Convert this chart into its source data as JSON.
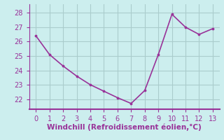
{
  "x": [
    0,
    1,
    2,
    3,
    4,
    5,
    6,
    7,
    8,
    9,
    10,
    11,
    12,
    13
  ],
  "y": [
    26.4,
    25.1,
    24.3,
    23.6,
    23.0,
    22.55,
    22.1,
    21.7,
    22.6,
    25.1,
    27.9,
    27.0,
    26.5,
    26.9
  ],
  "line_color": "#993399",
  "marker_color": "#993399",
  "bg_color": "#cceeee",
  "grid_color": "#aacccc",
  "axis_color": "#993399",
  "spine_color": "#993399",
  "xlabel": "Windchill (Refroidissement éolien,°C)",
  "xlabel_color": "#993399",
  "ylabel_ticks": [
    22,
    23,
    24,
    25,
    26,
    27,
    28
  ],
  "xlim": [
    -0.5,
    13.5
  ],
  "ylim": [
    21.3,
    28.6
  ],
  "xlabel_fontsize": 7.5,
  "tick_fontsize": 7,
  "linewidth": 1.2,
  "markersize": 3.5
}
